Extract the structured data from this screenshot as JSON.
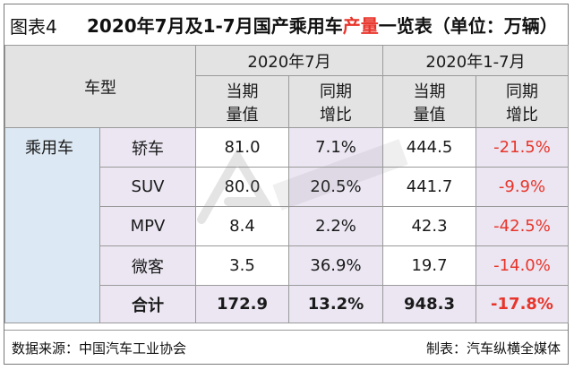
{
  "title": {
    "fig_tag": "图表4",
    "pre": "2020年7月及1-7月国产乘用车",
    "highlight": "产量",
    "post": "一览表（单位：万辆）",
    "highlight_color": "#e8352b"
  },
  "header": {
    "vehicle_type": "车型",
    "period1": "2020年7月",
    "period2": "2020年1-7月",
    "current_value": [
      "当期",
      "量值"
    ],
    "yoy": [
      "同期",
      "增比"
    ]
  },
  "category": "乘用车",
  "rows": [
    {
      "type": "轿车",
      "m_value": "81.0",
      "m_yoy": "7.1%",
      "ytd_value": "444.5",
      "ytd_yoy": "-21.5%"
    },
    {
      "type": "SUV",
      "m_value": "80.0",
      "m_yoy": "20.5%",
      "ytd_value": "441.7",
      "ytd_yoy": "-9.9%"
    },
    {
      "type": "MPV",
      "m_value": "8.4",
      "m_yoy": "2.2%",
      "ytd_value": "42.3",
      "ytd_yoy": "-42.5%"
    },
    {
      "type": "微客",
      "m_value": "3.5",
      "m_yoy": "36.9%",
      "ytd_value": "19.7",
      "ytd_yoy": "-14.0%"
    }
  ],
  "total": {
    "label": "合计",
    "m_value": "172.9",
    "m_yoy": "13.2%",
    "ytd_value": "948.3",
    "ytd_yoy": "-17.8%"
  },
  "footer": {
    "source": "数据来源：中国汽车工业协会",
    "maker": "制表：汽车纵横全媒体"
  },
  "colors": {
    "negative": "#e8352b",
    "header_bg": "#e3e3e3",
    "blue_bg": "#dce8f3",
    "lavender_bg": "#ebe6f2"
  }
}
